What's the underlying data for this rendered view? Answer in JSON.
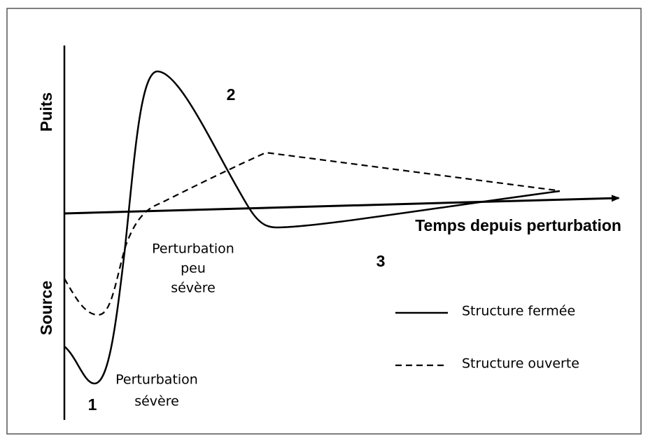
{
  "axes": {
    "y_top": "Puits",
    "y_bottom": "Source",
    "x": "Temps depuis perturbation"
  },
  "zones": [
    "1",
    "2",
    "3"
  ],
  "annotations": {
    "mild": [
      "Perturbation",
      "peu",
      "sévère"
    ],
    "severe": [
      "Perturbation",
      "sévère"
    ]
  },
  "legend": {
    "closed": "Structure fermée",
    "open": "Structure ouverte"
  }
}
